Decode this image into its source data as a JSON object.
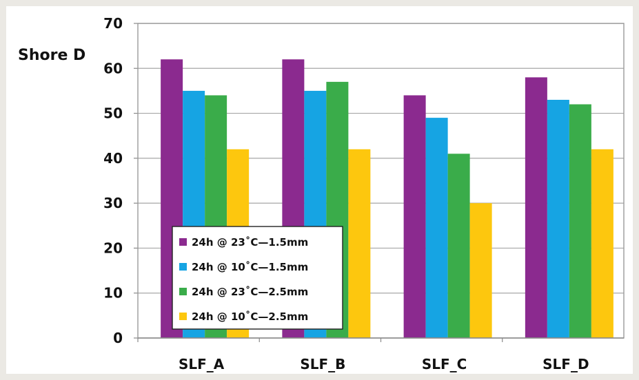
{
  "chart_data": {
    "type": "bar",
    "title": "",
    "xlabel": "",
    "ylabel": "Shore D",
    "categories": [
      "SLF_A",
      "SLF_B",
      "SLF_C",
      "SLF_D"
    ],
    "ylim": [
      0,
      70
    ],
    "yticks": [
      0,
      10,
      20,
      30,
      40,
      50,
      60,
      70
    ],
    "grid": true,
    "legend_position": "bottom-left",
    "series": [
      {
        "name": "24h @ 23˚C—1.5mm",
        "color": "#8b2a8f",
        "values": [
          62,
          62,
          54,
          58
        ]
      },
      {
        "name": "24h @ 10˚C—1.5mm",
        "color": "#16a4e3",
        "values": [
          55,
          55,
          49,
          53
        ]
      },
      {
        "name": "24h @ 23˚C—2.5mm",
        "color": "#3aac4a",
        "values": [
          54,
          57,
          41,
          52
        ]
      },
      {
        "name": "24h @ 10˚C—2.5mm",
        "color": "#fdc70e",
        "values": [
          42,
          42,
          30,
          42
        ]
      }
    ]
  }
}
